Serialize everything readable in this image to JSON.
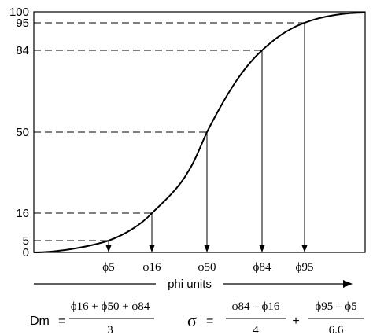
{
  "chart_data": {
    "type": "line",
    "title": "",
    "xlabel": "phi units",
    "ylabel": "",
    "grid": false,
    "y_ticks": [
      "100",
      "95",
      "84",
      "50",
      "16",
      "5",
      "0"
    ],
    "percentiles": [
      5,
      16,
      50,
      84,
      95
    ],
    "phi_labels": [
      "ϕ5",
      "ϕ16",
      "ϕ50",
      "ϕ84",
      "ϕ95"
    ]
  },
  "formulas": {
    "dm": {
      "lhs": "Dm",
      "eq": "=",
      "numerator": "ϕ16 + ϕ50 + ϕ84",
      "denominator": "3"
    },
    "sigma": {
      "lhs": "σ",
      "eq": "=",
      "term1_numerator": "ϕ84 – ϕ16",
      "term1_denominator": "4",
      "plus": "+",
      "term2_numerator": "ϕ95 – ϕ5",
      "term2_denominator": "6.6"
    }
  }
}
